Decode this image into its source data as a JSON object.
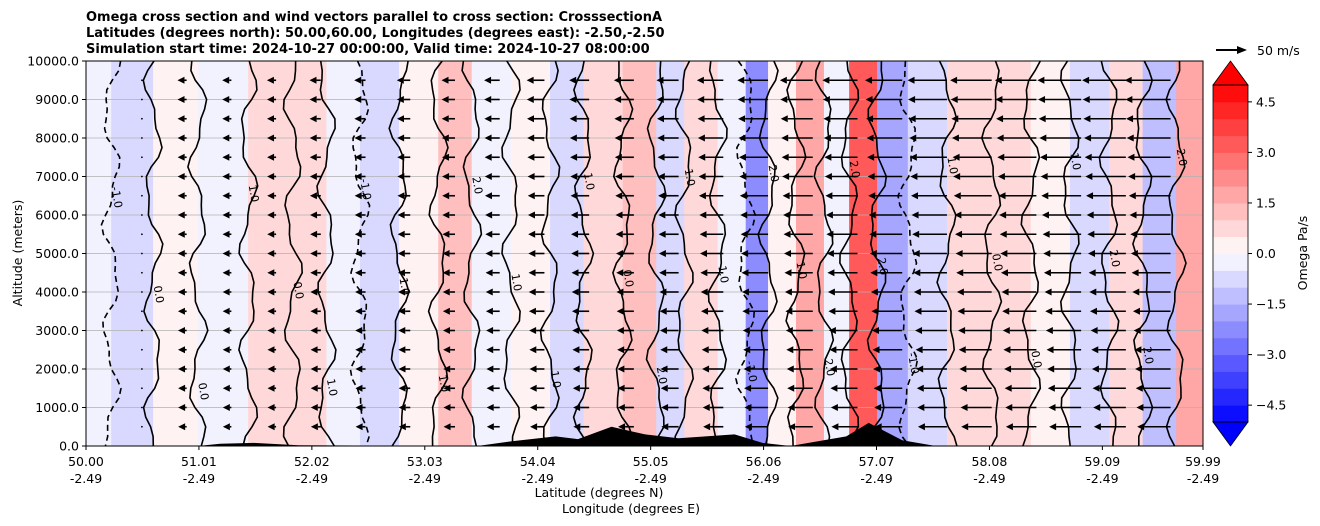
{
  "chart_data": {
    "type": "heatmap",
    "title_lines": [
      "Omega cross section and wind vectors parallel to cross section: CrosssectionA",
      "Latitudes (degrees north): 50.00,60.00, Longitudes (degrees east): -2.50,-2.50",
      "Simulation start time: 2024-10-27 00:00:00, Valid time: 2024-10-27 08:00:00"
    ],
    "xlabel_lines": [
      "Latitude (degrees N)",
      "Longitude (degrees E)"
    ],
    "ylabel": "Altitude (meters)",
    "x_ticks": [
      {
        "lat": "50.00",
        "lon": "-2.49",
        "v": 50.0
      },
      {
        "lat": "51.01",
        "lon": "-2.49",
        "v": 51.01
      },
      {
        "lat": "52.02",
        "lon": "-2.49",
        "v": 52.02
      },
      {
        "lat": "53.03",
        "lon": "-2.49",
        "v": 53.03
      },
      {
        "lat": "54.04",
        "lon": "-2.49",
        "v": 54.04
      },
      {
        "lat": "55.05",
        "lon": "-2.49",
        "v": 55.05
      },
      {
        "lat": "56.06",
        "lon": "-2.49",
        "v": 56.06
      },
      {
        "lat": "57.07",
        "lon": "-2.49",
        "v": 57.07
      },
      {
        "lat": "58.08",
        "lon": "-2.49",
        "v": 58.08
      },
      {
        "lat": "59.09",
        "lon": "-2.49",
        "v": 59.09
      },
      {
        "lat": "59.99",
        "lon": "-2.49",
        "v": 59.99
      }
    ],
    "xlim": [
      50.0,
      59.99
    ],
    "y_ticks": [
      "0.0",
      "1000.0",
      "2000.0",
      "3000.0",
      "4000.0",
      "5000.0",
      "6000.0",
      "7000.0",
      "8000.0",
      "9000.0",
      "10000.0"
    ],
    "ylim": [
      0,
      10000
    ],
    "grid": "horizontal",
    "colorbar": {
      "label": "Omega Pa/s",
      "ticks": [
        "4.5",
        "3.0",
        "1.5",
        "0.0",
        "−1.5",
        "−3.0",
        "−4.5"
      ],
      "tick_values": [
        4.5,
        3.0,
        1.5,
        0.0,
        -1.5,
        -3.0,
        -4.5
      ],
      "range": [
        -5.0,
        5.0
      ],
      "colormap": "bwr",
      "extend": "both"
    },
    "vector_key": {
      "label": "50 m/s"
    },
    "contour_labels": [
      "0.0",
      "1.0",
      "2.0",
      "-1.0",
      "-2.0"
    ],
    "omega_columns": [
      {
        "lat": 50.05,
        "value": -0.3
      },
      {
        "lat": 50.4,
        "value": -0.6
      },
      {
        "lat": 50.8,
        "value": 0.1
      },
      {
        "lat": 51.2,
        "value": -0.3
      },
      {
        "lat": 51.7,
        "value": 0.9
      },
      {
        "lat": 52.0,
        "value": 0.5
      },
      {
        "lat": 52.3,
        "value": -0.4
      },
      {
        "lat": 52.6,
        "value": -0.6
      },
      {
        "lat": 53.0,
        "value": 0.4
      },
      {
        "lat": 53.3,
        "value": 1.1
      },
      {
        "lat": 53.6,
        "value": -0.5
      },
      {
        "lat": 54.0,
        "value": 0.3
      },
      {
        "lat": 54.3,
        "value": -0.8
      },
      {
        "lat": 54.6,
        "value": 0.6
      },
      {
        "lat": 55.0,
        "value": 1.2
      },
      {
        "lat": 55.2,
        "value": -0.9
      },
      {
        "lat": 55.5,
        "value": 0.5
      },
      {
        "lat": 55.8,
        "value": -0.4
      },
      {
        "lat": 56.0,
        "value": -2.4
      },
      {
        "lat": 56.2,
        "value": 0.4
      },
      {
        "lat": 56.5,
        "value": 1.9
      },
      {
        "lat": 56.7,
        "value": -0.3
      },
      {
        "lat": 56.95,
        "value": 3.0
      },
      {
        "lat": 57.2,
        "value": -1.8
      },
      {
        "lat": 57.5,
        "value": -0.6
      },
      {
        "lat": 57.9,
        "value": 0.9
      },
      {
        "lat": 58.3,
        "value": 0.6
      },
      {
        "lat": 58.6,
        "value": 0.3
      },
      {
        "lat": 59.0,
        "value": -0.9
      },
      {
        "lat": 59.3,
        "value": 0.8
      },
      {
        "lat": 59.6,
        "value": -1.2
      },
      {
        "lat": 59.9,
        "value": 1.5
      }
    ],
    "wind_columns": [
      {
        "lat": 50.5,
        "u": 0
      },
      {
        "lat": 50.9,
        "u": -1
      },
      {
        "lat": 51.3,
        "u": -1
      },
      {
        "lat": 51.7,
        "u": -1
      },
      {
        "lat": 52.1,
        "u": -2
      },
      {
        "lat": 52.5,
        "u": -2
      },
      {
        "lat": 52.9,
        "u": -3
      },
      {
        "lat": 53.3,
        "u": -3
      },
      {
        "lat": 53.7,
        "u": -4
      },
      {
        "lat": 54.1,
        "u": -5
      },
      {
        "lat": 54.5,
        "u": -6
      },
      {
        "lat": 54.9,
        "u": -6
      },
      {
        "lat": 55.3,
        "u": -7
      },
      {
        "lat": 55.7,
        "u": -9
      },
      {
        "lat": 56.1,
        "u": -11
      },
      {
        "lat": 56.5,
        "u": -12
      },
      {
        "lat": 56.9,
        "u": -13
      },
      {
        "lat": 57.3,
        "u": -14
      },
      {
        "lat": 57.7,
        "u": -15
      },
      {
        "lat": 58.1,
        "u": -16
      },
      {
        "lat": 58.5,
        "u": -16
      },
      {
        "lat": 58.9,
        "u": -17
      },
      {
        "lat": 59.3,
        "u": -17
      },
      {
        "lat": 59.7,
        "u": -18
      }
    ],
    "terrain": [
      {
        "lat": 50.0,
        "h": 0
      },
      {
        "lat": 51.0,
        "h": 0
      },
      {
        "lat": 51.2,
        "h": 60
      },
      {
        "lat": 51.5,
        "h": 80
      },
      {
        "lat": 51.9,
        "h": 20
      },
      {
        "lat": 53.5,
        "h": 0
      },
      {
        "lat": 53.8,
        "h": 120
      },
      {
        "lat": 54.2,
        "h": 250
      },
      {
        "lat": 54.4,
        "h": 180
      },
      {
        "lat": 54.7,
        "h": 500
      },
      {
        "lat": 55.0,
        "h": 300
      },
      {
        "lat": 55.3,
        "h": 200
      },
      {
        "lat": 55.8,
        "h": 300
      },
      {
        "lat": 56.05,
        "h": 80
      },
      {
        "lat": 56.3,
        "h": 0
      },
      {
        "lat": 56.8,
        "h": 250
      },
      {
        "lat": 57.0,
        "h": 600
      },
      {
        "lat": 57.3,
        "h": 150
      },
      {
        "lat": 57.6,
        "h": 0
      },
      {
        "lat": 59.99,
        "h": 0
      }
    ]
  }
}
